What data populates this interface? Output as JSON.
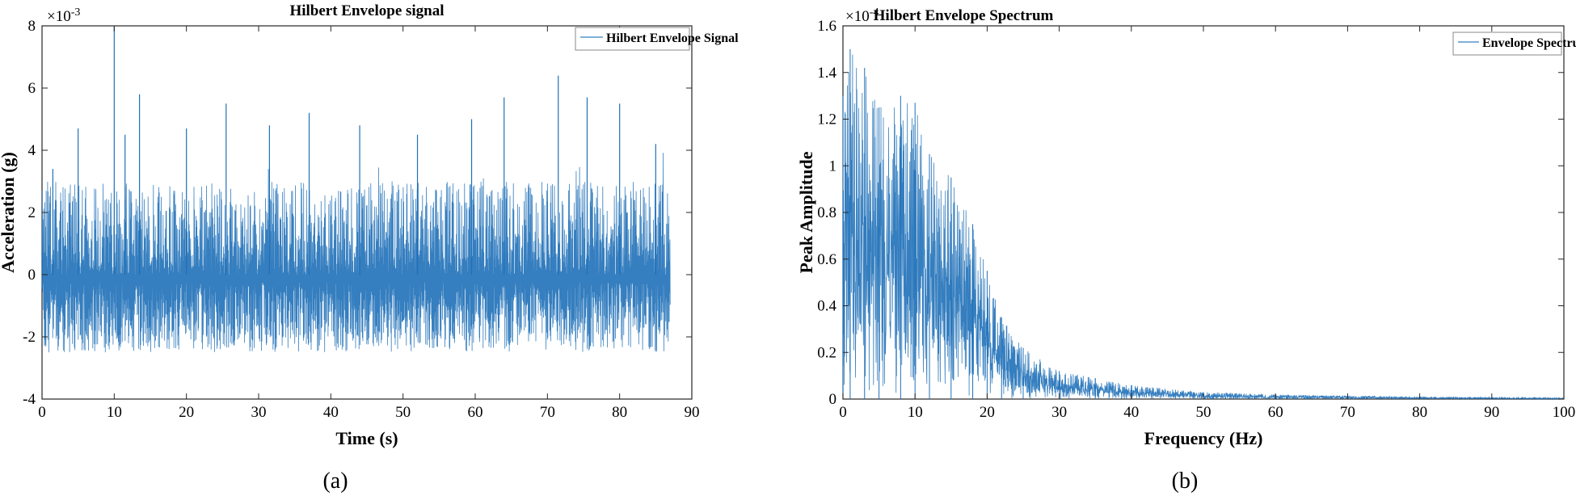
{
  "chart_data": [
    {
      "type": "line",
      "title": "Hilbert Envelope signal",
      "xlabel": "Time (s)",
      "ylabel": "Acceleration (g)",
      "y_multiplier": "×10",
      "y_multiplier_exp": "-3",
      "xlim": [
        0,
        90
      ],
      "ylim": [
        -4,
        8
      ],
      "xticks": [
        0,
        10,
        20,
        30,
        40,
        50,
        60,
        70,
        80,
        90
      ],
      "yticks": [
        -4,
        -2,
        0,
        2,
        4,
        6,
        8
      ],
      "grid": false,
      "legend_position": "top-right",
      "color": "#1f70b8",
      "series": [
        {
          "name": "Hilbert Envelope Signal",
          "x_range": [
            0,
            87
          ],
          "baseline": 0.0,
          "lower_envelope": -2.5,
          "typical_upper": 3.0,
          "peaks": [
            {
              "x": 1.5,
              "y": 3.4
            },
            {
              "x": 5,
              "y": 4.7
            },
            {
              "x": 10,
              "y": 8.0
            },
            {
              "x": 11.5,
              "y": 4.5
            },
            {
              "x": 13.5,
              "y": 5.8
            },
            {
              "x": 20,
              "y": 4.7
            },
            {
              "x": 25.5,
              "y": 5.5
            },
            {
              "x": 31.5,
              "y": 4.8
            },
            {
              "x": 37,
              "y": 5.2
            },
            {
              "x": 44,
              "y": 4.8
            },
            {
              "x": 52,
              "y": 4.5
            },
            {
              "x": 59.5,
              "y": 5.0
            },
            {
              "x": 64,
              "y": 5.7
            },
            {
              "x": 71.5,
              "y": 6.4
            },
            {
              "x": 75.5,
              "y": 5.7
            },
            {
              "x": 80,
              "y": 5.5
            },
            {
              "x": 85,
              "y": 4.2
            }
          ]
        }
      ]
    },
    {
      "type": "line",
      "title": "Hilbert Envelope Spectrum",
      "xlabel": "Frequency (Hz)",
      "ylabel": "Peak Amplitude",
      "y_multiplier": "×10",
      "y_multiplier_exp": "-4",
      "xlim": [
        0,
        100
      ],
      "ylim": [
        0,
        1.6
      ],
      "xticks": [
        0,
        10,
        20,
        30,
        40,
        50,
        60,
        70,
        80,
        90,
        100
      ],
      "yticks": [
        0,
        0.2,
        0.4,
        0.6,
        0.8,
        1,
        1.2,
        1.4,
        1.6
      ],
      "grid": false,
      "legend_position": "top-right",
      "color": "#1f70b8",
      "series": [
        {
          "name": "Envelope Spectrum",
          "envelope_points": [
            {
              "x": 0,
              "y": 1.3
            },
            {
              "x": 1,
              "y": 1.5
            },
            {
              "x": 3,
              "y": 1.42
            },
            {
              "x": 5,
              "y": 1.25
            },
            {
              "x": 8,
              "y": 1.3
            },
            {
              "x": 10,
              "y": 1.27
            },
            {
              "x": 12,
              "y": 1.05
            },
            {
              "x": 15,
              "y": 0.95
            },
            {
              "x": 18,
              "y": 0.75
            },
            {
              "x": 20,
              "y": 0.55
            },
            {
              "x": 22,
              "y": 0.35
            },
            {
              "x": 25,
              "y": 0.22
            },
            {
              "x": 30,
              "y": 0.12
            },
            {
              "x": 35,
              "y": 0.09
            },
            {
              "x": 40,
              "y": 0.06
            },
            {
              "x": 50,
              "y": 0.03
            },
            {
              "x": 60,
              "y": 0.02
            },
            {
              "x": 70,
              "y": 0.015
            },
            {
              "x": 80,
              "y": 0.01
            },
            {
              "x": 90,
              "y": 0.008
            },
            {
              "x": 100,
              "y": 0.005
            }
          ]
        }
      ]
    }
  ],
  "captions": [
    "(a)",
    "(b)"
  ]
}
